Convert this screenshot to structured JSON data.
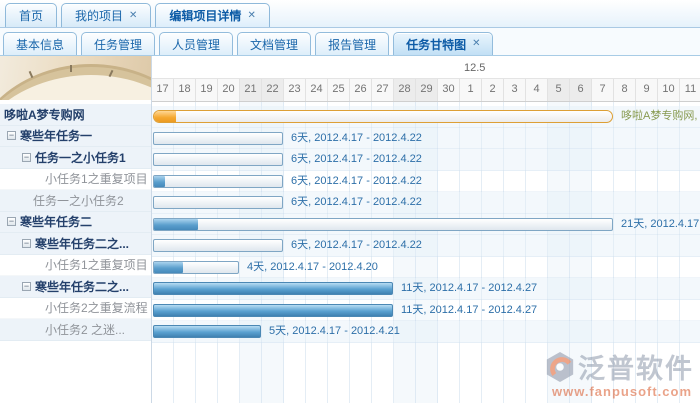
{
  "icons": {
    "close": "✕",
    "collapse": "−"
  },
  "browser_tabs": [
    {
      "label": "首页",
      "closable": false,
      "active": false
    },
    {
      "label": "我的项目",
      "closable": true,
      "active": false
    },
    {
      "label": "编辑项目详情",
      "closable": true,
      "active": true
    }
  ],
  "module_tabs": [
    {
      "label": "基本信息",
      "closable": false,
      "active": false
    },
    {
      "label": "任务管理",
      "closable": false,
      "active": false
    },
    {
      "label": "人员管理",
      "closable": false,
      "active": false
    },
    {
      "label": "文档管理",
      "closable": false,
      "active": false
    },
    {
      "label": "报告管理",
      "closable": false,
      "active": false
    },
    {
      "label": "任务甘特图",
      "closable": true,
      "active": true
    }
  ],
  "gantt": {
    "month_label": "12.5",
    "days": [
      "17",
      "18",
      "19",
      "20",
      "21",
      "22",
      "23",
      "24",
      "25",
      "26",
      "27",
      "28",
      "29",
      "30",
      "1",
      "2",
      "3",
      "4",
      "5",
      "6",
      "7",
      "8",
      "9",
      "10",
      "11"
    ],
    "weekend_indices": [
      4,
      5,
      11,
      12,
      18,
      19
    ],
    "rows": [
      {
        "task": "哆啦A梦专购网",
        "level": 0,
        "bold": true,
        "expand": false,
        "shaded": true,
        "bar": {
          "type": "summary",
          "duration": 21,
          "progress": 1,
          "label": "哆啦A梦专购网,"
        }
      },
      {
        "task": "寒些年任务一",
        "level": 1,
        "bold": true,
        "expand": true,
        "shaded": true,
        "bar": {
          "type": "normal",
          "duration": 6,
          "progress": 0,
          "label": "6天, 2012.4.17 - 2012.4.22"
        }
      },
      {
        "task": "任务一之小任务1",
        "level": 2,
        "bold": true,
        "expand": true,
        "shaded": true,
        "bar": {
          "type": "normal",
          "duration": 6,
          "progress": 0,
          "label": "6天, 2012.4.17 - 2012.4.22"
        }
      },
      {
        "task": "小任务1之重复项目",
        "level": 3,
        "bold": false,
        "expand": false,
        "shaded": false,
        "bar": {
          "type": "normal",
          "duration": 6,
          "progress": 0.5,
          "label": "6天, 2012.4.17 - 2012.4.22"
        }
      },
      {
        "task": "任务一之小任务2",
        "level": 2,
        "bold": false,
        "expand": false,
        "shaded": true,
        "bar": {
          "type": "normal",
          "duration": 6,
          "progress": 0,
          "label": "6天, 2012.4.17 - 2012.4.22"
        }
      },
      {
        "task": "寒些年任务二",
        "level": 1,
        "bold": true,
        "expand": true,
        "shaded": true,
        "bar": {
          "type": "normal",
          "duration": 21,
          "progress": 2,
          "label": "21天, 2012.4.17 -"
        }
      },
      {
        "task": "寒些年任务二之...",
        "level": 2,
        "bold": true,
        "expand": true,
        "shaded": true,
        "bar": {
          "type": "normal",
          "duration": 6,
          "progress": 0,
          "label": "6天, 2012.4.17 - 2012.4.22"
        }
      },
      {
        "task": "小任务1之重复项目",
        "level": 3,
        "bold": false,
        "expand": false,
        "shaded": false,
        "bar": {
          "type": "normal",
          "duration": 4,
          "progress": 1.3,
          "label": "4天, 2012.4.17 - 2012.4.20"
        }
      },
      {
        "task": "寒些年任务二之...",
        "level": 2,
        "bold": true,
        "expand": true,
        "shaded": true,
        "bar": {
          "type": "filled",
          "duration": 11,
          "progress": 11,
          "label": "11天, 2012.4.17 - 2012.4.27"
        }
      },
      {
        "task": "小任务2之重复流程",
        "level": 3,
        "bold": false,
        "expand": false,
        "shaded": false,
        "bar": {
          "type": "filled",
          "duration": 11,
          "progress": 11,
          "label": "11天, 2012.4.17 - 2012.4.27"
        }
      },
      {
        "task": "小任务2 之迷...",
        "level": 3,
        "bold": false,
        "expand": false,
        "shaded": true,
        "bar": {
          "type": "filled",
          "duration": 5,
          "progress": 5,
          "label": "5天, 2012.4.17 - 2012.4.21"
        }
      }
    ]
  },
  "watermark": {
    "brand": "泛普软件",
    "url": "www.fanpusoft.com"
  },
  "colors": {
    "accent_blue": "#1b67ab",
    "bar_blue": "#5b9fcd",
    "summary_orange": "#f5a830",
    "bar_label_blue": "#2d6fa8",
    "watermark_gray": "#8e99ab",
    "watermark_orange": "#d9582a"
  }
}
